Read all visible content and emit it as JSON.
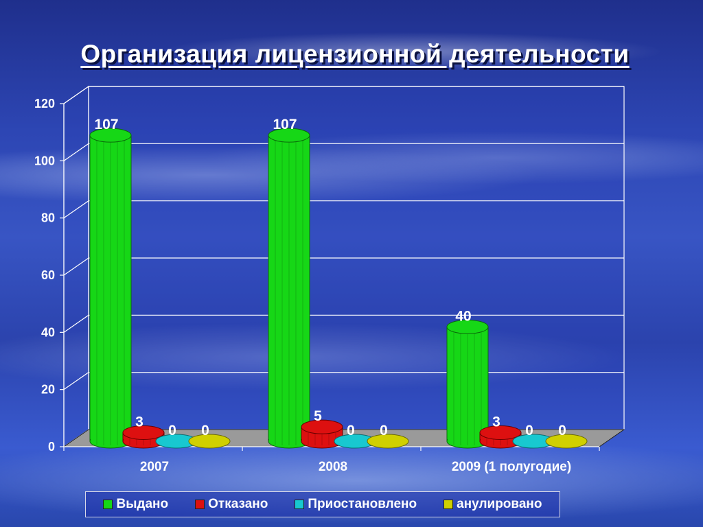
{
  "title": "Организация лицензионной деятельности",
  "colors": {
    "issued": "#16d716",
    "refused": "#dd1010",
    "suspended": "#18c8d0",
    "annulled": "#d0d000"
  },
  "legend": [
    {
      "label": "Выдано",
      "color": "#16d716"
    },
    {
      "label": "Отказано",
      "color": "#dd1010"
    },
    {
      "label": "Приостановлено",
      "color": "#18c8d0"
    },
    {
      "label": "анулировано",
      "color": "#d0d000"
    }
  ],
  "chart_data": {
    "type": "bar",
    "categories": [
      "2007",
      "2008",
      "2009 (1 полугодие)"
    ],
    "series": [
      {
        "name": "Выдано",
        "values": [
          107,
          107,
          40
        ]
      },
      {
        "name": "Отказано",
        "values": [
          3,
          5,
          3
        ]
      },
      {
        "name": "Приостановлено",
        "values": [
          0,
          0,
          0
        ]
      },
      {
        "name": "анулировано",
        "values": [
          0,
          0,
          0
        ]
      }
    ],
    "ylim": [
      0,
      120
    ],
    "yticks": [
      "0",
      "20",
      "40",
      "60",
      "80",
      "100",
      "120"
    ],
    "grid": true,
    "legend_position": "bottom"
  }
}
